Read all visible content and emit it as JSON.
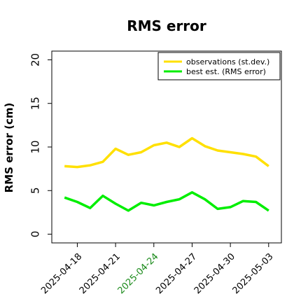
{
  "chart_data": {
    "type": "line",
    "title": "RMS error",
    "xlabel": "",
    "ylabel": "RMS error (cm)",
    "ylim": [
      -1,
      21
    ],
    "yticks": [
      0,
      5,
      10,
      15,
      20
    ],
    "ytick_labels": [
      "0",
      "5",
      "10",
      "15",
      "20"
    ],
    "xlim": [
      "2025-04-16",
      "2025-05-04"
    ],
    "xticks": [
      {
        "date": "2025-04-18",
        "label": "2025-04-18",
        "color": "#000000"
      },
      {
        "date": "2025-04-21",
        "label": "2025-04-21",
        "color": "#000000"
      },
      {
        "date": "2025-04-24",
        "label": "2025-04-24",
        "color": "#1a8a1a"
      },
      {
        "date": "2025-04-27",
        "label": "2025-04-27",
        "color": "#000000"
      },
      {
        "date": "2025-04-30",
        "label": "2025-04-30",
        "color": "#000000"
      },
      {
        "date": "2025-05-03",
        "label": "2025-05-03",
        "color": "#000000"
      }
    ],
    "grid": false,
    "legend_position": "top-right",
    "x": [
      "2025-04-17",
      "2025-04-18",
      "2025-04-19",
      "2025-04-20",
      "2025-04-21",
      "2025-04-22",
      "2025-04-23",
      "2025-04-24",
      "2025-04-25",
      "2025-04-26",
      "2025-04-27",
      "2025-04-28",
      "2025-04-29",
      "2025-04-30",
      "2025-05-01",
      "2025-05-02",
      "2025-05-03"
    ],
    "series": [
      {
        "name": "observations (st.dev.)",
        "color": "#ffe000",
        "values": [
          7.8,
          7.7,
          7.9,
          8.3,
          9.8,
          9.1,
          9.4,
          10.2,
          10.5,
          10.0,
          11.0,
          10.1,
          9.6,
          9.4,
          9.2,
          8.9,
          7.8
        ]
      },
      {
        "name": "best est. (RMS error)",
        "color": "#00ee00",
        "values": [
          4.2,
          3.7,
          3.0,
          4.4,
          3.5,
          2.7,
          3.6,
          3.3,
          3.7,
          4.0,
          4.8,
          4.0,
          2.9,
          3.1,
          3.8,
          3.7,
          2.7
        ]
      }
    ]
  }
}
